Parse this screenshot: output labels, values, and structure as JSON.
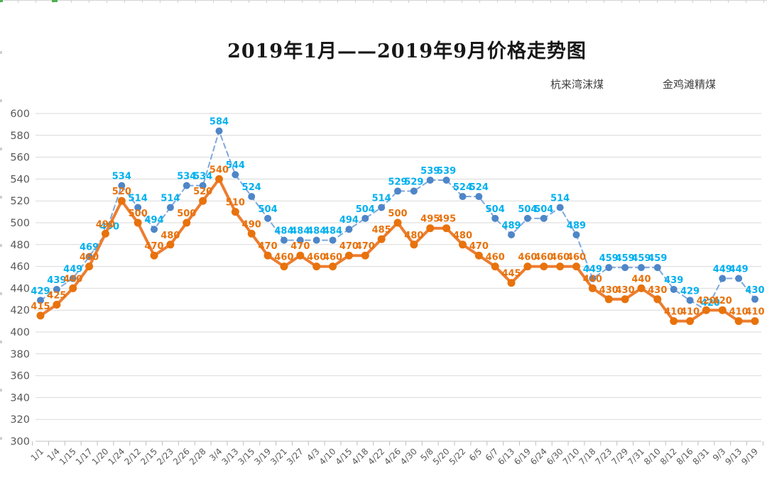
{
  "chart_data": {
    "type": "line",
    "title": "2019年1月——2019年9月价格走势图",
    "xlabel": "",
    "ylabel": "",
    "ylim": [
      300,
      600
    ],
    "y_ticks": [
      300,
      320,
      340,
      360,
      380,
      400,
      420,
      440,
      460,
      480,
      500,
      520,
      540,
      560,
      580,
      600
    ],
    "grid": true,
    "legend_position": "top-right",
    "categories": [
      "1/1",
      "1/4",
      "1/15",
      "1/17",
      "1/20",
      "1/24",
      "2/12",
      "2/15",
      "2/23",
      "2/26",
      "2/28",
      "3/4",
      "3/13",
      "3/15",
      "3/19",
      "3/21",
      "3/27",
      "4/3",
      "4/10",
      "4/15",
      "4/18",
      "4/22",
      "4/26",
      "4/30",
      "5/8",
      "5/20",
      "5/22",
      "6/5",
      "6/7",
      "6/13",
      "6/19",
      "6/24",
      "6/30",
      "7/10",
      "7/18",
      "7/23",
      "7/29",
      "7/31",
      "8/10",
      "8/12",
      "8/16",
      "8/31",
      "9/3",
      "9/13",
      "9/19"
    ],
    "series": [
      {
        "name": "杭来湾沫煤",
        "style": "dashed",
        "line_color": "#7fa8dc",
        "marker_color": "#4e86c8",
        "label_color": "#00b0f0",
        "values": [
          429,
          439,
          449,
          469,
          490,
          534,
          514,
          494,
          514,
          534,
          534,
          584,
          544,
          524,
          504,
          484,
          484,
          484,
          484,
          494,
          504,
          514,
          529,
          529,
          539,
          539,
          524,
          524,
          504,
          489,
          504,
          504,
          514,
          489,
          449,
          459,
          459,
          459,
          459,
          439,
          429,
          420,
          449,
          449,
          430
        ]
      },
      {
        "name": "金鸡滩精煤",
        "style": "solid",
        "line_color": "#ed7d31",
        "marker_color": "#e8720c",
        "label_color": "#e8720c",
        "values": [
          415,
          425,
          440,
          460,
          490,
          520,
          500,
          470,
          480,
          500,
          520,
          540,
          510,
          490,
          470,
          460,
          470,
          460,
          460,
          470,
          470,
          485,
          500,
          480,
          495,
          495,
          480,
          470,
          460,
          445,
          460,
          460,
          460,
          460,
          440,
          430,
          430,
          440,
          430,
          410,
          410,
          420,
          420,
          410,
          410
        ]
      }
    ],
    "axis_colors": {
      "gridline": "#d9d9d9",
      "axis_line": "#bfbfbf",
      "tick_label": "#595959"
    },
    "edge_marks_color": "#4caf50"
  }
}
